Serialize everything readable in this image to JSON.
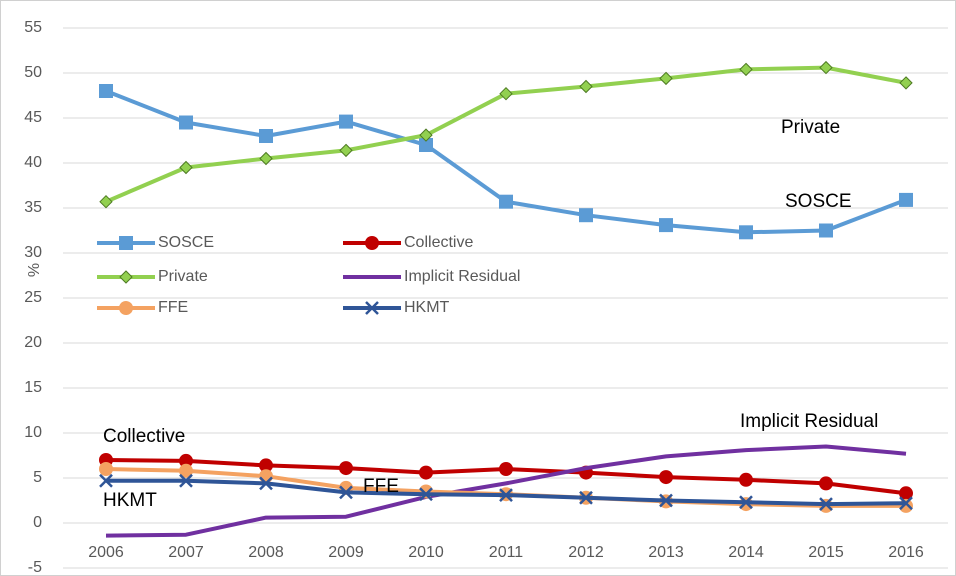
{
  "chart_data": {
    "type": "line",
    "y_label": "%",
    "categories": [
      "2006",
      "2007",
      "2008",
      "2009",
      "2010",
      "2011",
      "2012",
      "2013",
      "2014",
      "2015",
      "2016"
    ],
    "series": [
      {
        "name": "SOSCE",
        "color": "#5b9bd5",
        "marker": "square",
        "values": [
          48,
          44.5,
          43,
          44.6,
          42,
          35.7,
          34.2,
          33.1,
          32.3,
          32.5,
          35.9
        ]
      },
      {
        "name": "Collective",
        "color": "#c00000",
        "marker": "circle",
        "values": [
          7,
          6.9,
          6.4,
          6.1,
          5.6,
          6,
          5.6,
          5.1,
          4.8,
          4.4,
          3.3
        ]
      },
      {
        "name": "Private",
        "color": "#92d050",
        "marker": "diamond",
        "values": [
          35.7,
          39.5,
          40.5,
          41.4,
          43.1,
          47.7,
          48.5,
          49.4,
          50.4,
          50.6,
          48.9
        ]
      },
      {
        "name": "Implicit Residual",
        "color": "#7030a0",
        "marker": "none",
        "values": [
          -1.4,
          -1.3,
          0.6,
          0.7,
          2.9,
          4.4,
          6.1,
          7.4,
          8.1,
          8.5,
          7.7
        ]
      },
      {
        "name": "FFE",
        "color": "#f4a261",
        "marker": "circle",
        "values": [
          6,
          5.8,
          5.2,
          3.9,
          3.5,
          3.2,
          2.8,
          2.4,
          2.1,
          1.9,
          1.9
        ]
      },
      {
        "name": "HKMT",
        "color": "#2f5597",
        "marker": "x",
        "values": [
          4.7,
          4.7,
          4.4,
          3.4,
          3.2,
          3.1,
          2.8,
          2.5,
          2.3,
          2.1,
          2.2
        ]
      }
    ],
    "annotations": [
      "Private",
      "SOSCE",
      "Implicit Residual",
      "Collective",
      "HKMT",
      "FFE"
    ],
    "ylim": [
      -5,
      55
    ],
    "yticks": [
      -5,
      0,
      5,
      10,
      15,
      20,
      25,
      30,
      35,
      40,
      45,
      50,
      55
    ],
    "grid": true,
    "legend": "inside"
  }
}
